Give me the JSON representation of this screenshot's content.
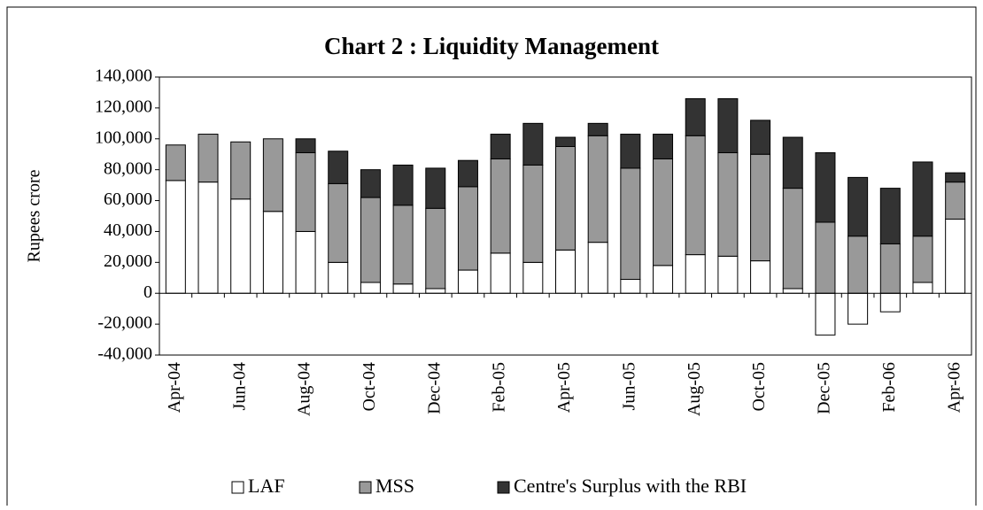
{
  "chart_data": {
    "type": "bar",
    "stacked": true,
    "title": "Chart 2 : Liquidity Management",
    "y_label": "Rupees crore",
    "categories": [
      "Apr-04",
      null,
      "Jun-04",
      null,
      "Aug-04",
      null,
      "Oct-04",
      null,
      "Dec-04",
      null,
      "Feb-05",
      null,
      "Apr-05",
      null,
      "Jun-05",
      null,
      "Aug-05",
      null,
      "Oct-05",
      null,
      "Dec-05",
      null,
      "Feb-06",
      null,
      "Apr-06"
    ],
    "series": [
      {
        "name": "LAF",
        "color": "#ffffff",
        "values": [
          73000,
          72000,
          61000,
          53000,
          40000,
          20000,
          7000,
          6000,
          3000,
          15000,
          26000,
          20000,
          28000,
          33000,
          9000,
          18000,
          25000,
          24000,
          21000,
          3000,
          -27000,
          -20000,
          -12000,
          7000,
          48000
        ]
      },
      {
        "name": "MSS",
        "color": "#999999",
        "values": [
          23000,
          31000,
          37000,
          47000,
          51000,
          51000,
          55000,
          51000,
          52000,
          54000,
          61000,
          63000,
          67000,
          69000,
          72000,
          69000,
          77000,
          67000,
          69000,
          65000,
          46000,
          37000,
          32000,
          30000,
          24000
        ]
      },
      {
        "name": "Centre's Surplus with the RBI",
        "color": "#333333",
        "values": [
          0,
          0,
          0,
          0,
          9000,
          21000,
          18000,
          26000,
          26000,
          17000,
          16000,
          27000,
          6000,
          8000,
          22000,
          16000,
          24000,
          35000,
          22000,
          33000,
          45000,
          38000,
          36000,
          48000,
          6000
        ]
      }
    ],
    "ylim": [
      -40000,
      140000
    ],
    "yticks": [
      {
        "value": -40000,
        "label": "-40,000"
      },
      {
        "value": -20000,
        "label": "-20,000"
      },
      0,
      {
        "value": 20000,
        "label": "20,000"
      },
      {
        "value": 40000,
        "label": "40,000"
      },
      {
        "value": 60000,
        "label": "60,000"
      },
      {
        "value": 80000,
        "label": "80,000"
      },
      {
        "value": 100000,
        "label": "100,000"
      },
      {
        "value": 120000,
        "label": "120,000"
      },
      {
        "value": 140000,
        "label": "140,000"
      }
    ],
    "legend": "bottom"
  }
}
